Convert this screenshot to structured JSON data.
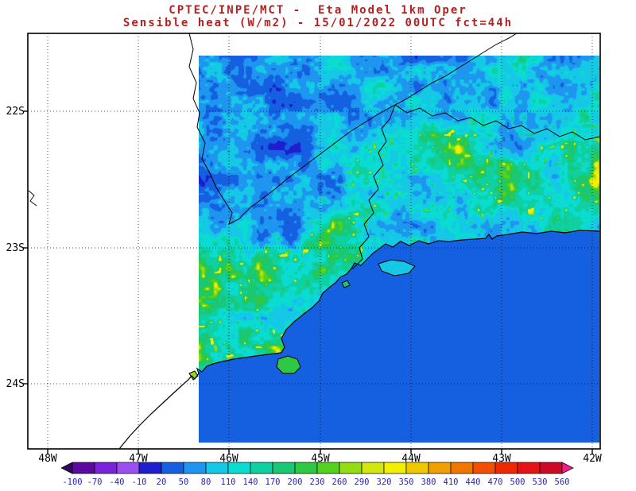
{
  "header": {
    "title_line1": "CPTEC/INPE/MCT -  Eta Model 1km Oper",
    "title_line2": "Sensible heat (W/m2) - 15/01/2022 00UTC fct=44h"
  },
  "axes": {
    "lat_labels": [
      "22S",
      "23S",
      "24S"
    ],
    "lon_labels": [
      "48W",
      "47W",
      "46W",
      "45W",
      "44W",
      "43W",
      "42W"
    ]
  },
  "colorbar": {
    "unit": "W/m2",
    "tick_labels": [
      "-100",
      "-70",
      "-40",
      "-10",
      "20",
      "50",
      "80",
      "110",
      "140",
      "170",
      "200",
      "230",
      "260",
      "290",
      "320",
      "350",
      "380",
      "410",
      "440",
      "470",
      "500",
      "530",
      "560"
    ],
    "segment_colors": [
      "#5a0aa0",
      "#7a23d8",
      "#9a50f0",
      "#1e1ecf",
      "#1560e0",
      "#1e96f0",
      "#14c8e6",
      "#0adcd2",
      "#0fd0a0",
      "#19c874",
      "#2ec845",
      "#55d21e",
      "#96dc14",
      "#d2e60f",
      "#f0f000",
      "#f0c800",
      "#f0a000",
      "#f07800",
      "#f05000",
      "#f02800",
      "#e61414",
      "#cc0a28"
    ],
    "arrow_left_color": "#32085a",
    "arrow_right_color": "#f01e8c",
    "label_color": "#2222cc"
  },
  "colors": {
    "title": "#b22222",
    "axis_label": "#000000",
    "ocean": "#1560e0",
    "background": "#ffffff",
    "map_lines": "#000000"
  },
  "chart_data": {
    "type": "heatmap",
    "title": "CPTEC/INPE/MCT -  Eta Model 1km Oper",
    "subtitle": "Sensible heat (W/m2) - 15/01/2022 00UTC fct=44h",
    "variable": "Sensible heat",
    "units": "W/m2",
    "model": "Eta Model 1km Oper",
    "run": "15/01/2022 00UTC",
    "forecast": "fct=44h",
    "x_ticks": [
      "48W",
      "47W",
      "46W",
      "45W",
      "44W",
      "43W",
      "42W"
    ],
    "y_ticks": [
      "22S",
      "23S",
      "24S"
    ],
    "colorbar_values": [
      -100,
      -70,
      -40,
      -10,
      20,
      50,
      80,
      110,
      140,
      170,
      200,
      230,
      260,
      290,
      320,
      350,
      380,
      410,
      440,
      470,
      500,
      530,
      560
    ],
    "colorbar_colors": [
      "#5a0aa0",
      "#7a23d8",
      "#9a50f0",
      "#1e1ecf",
      "#1560e0",
      "#1e96f0",
      "#14c8e6",
      "#0adcd2",
      "#0fd0a0",
      "#19c874",
      "#2ec845",
      "#55d21e",
      "#96dc14",
      "#d2e60f",
      "#f0f000",
      "#f0c800",
      "#f0a000",
      "#f07800",
      "#f05000",
      "#f02800",
      "#e61414",
      "#cc0a28"
    ],
    "value_step": 30,
    "field_summary": {
      "ocean": "uniform blue, approximately 20-50 W/m2",
      "land": "mottled 50-260 W/m2 (cyan/teal/green) with blue minima (-10 to 20) and yellow maxima near 260-320 along the coastal range"
    },
    "legend_position": "bottom",
    "grid": "dotted lat/lon gridlines at 1 degree"
  }
}
